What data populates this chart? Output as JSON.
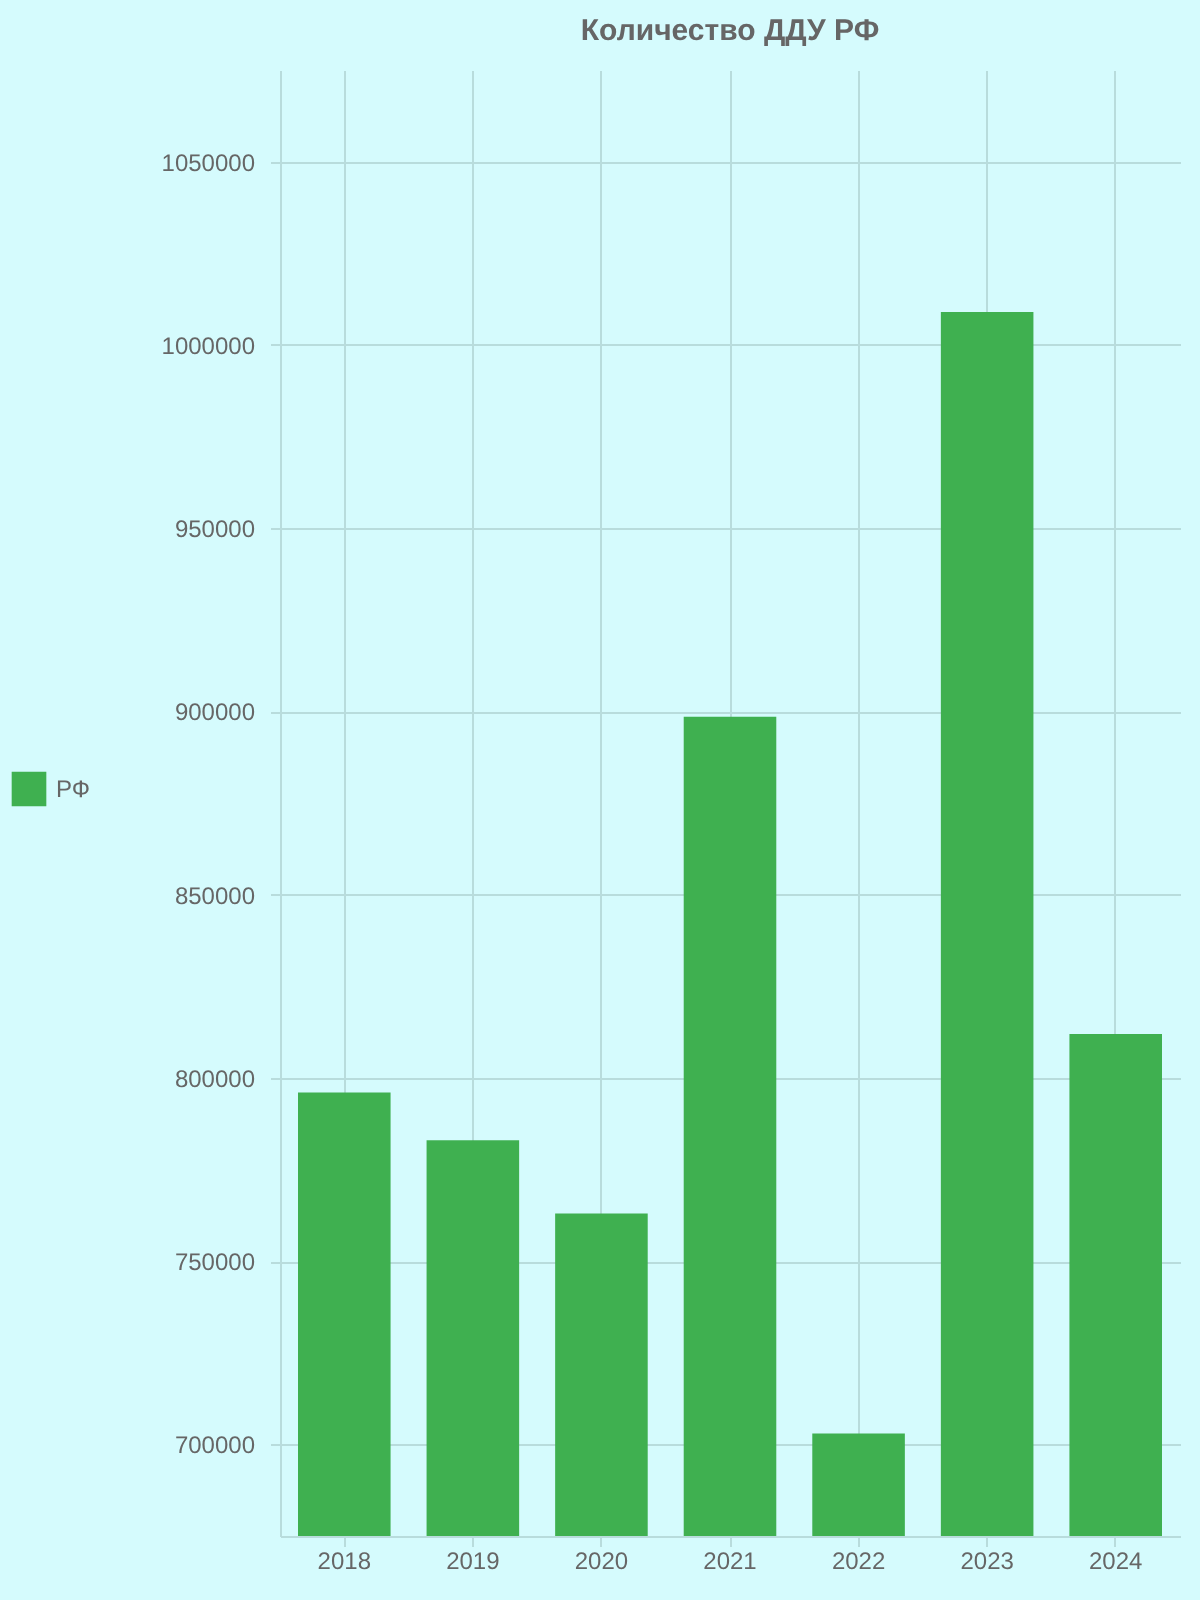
{
  "chart_data": {
    "type": "bar",
    "title": "Количество ДДУ РФ",
    "categories": [
      "2018",
      "2019",
      "2020",
      "2021",
      "2022",
      "2023",
      "2024"
    ],
    "series": [
      {
        "name": "РФ",
        "color": "#3fb050",
        "values": [
          796000,
          783000,
          763000,
          898500,
          703000,
          1009000,
          812000
        ]
      }
    ],
    "ylim": [
      675000,
      1075000
    ],
    "yticks": [
      700000,
      750000,
      800000,
      850000,
      900000,
      950000,
      1000000,
      1050000
    ],
    "grid": true,
    "legend": "left"
  }
}
